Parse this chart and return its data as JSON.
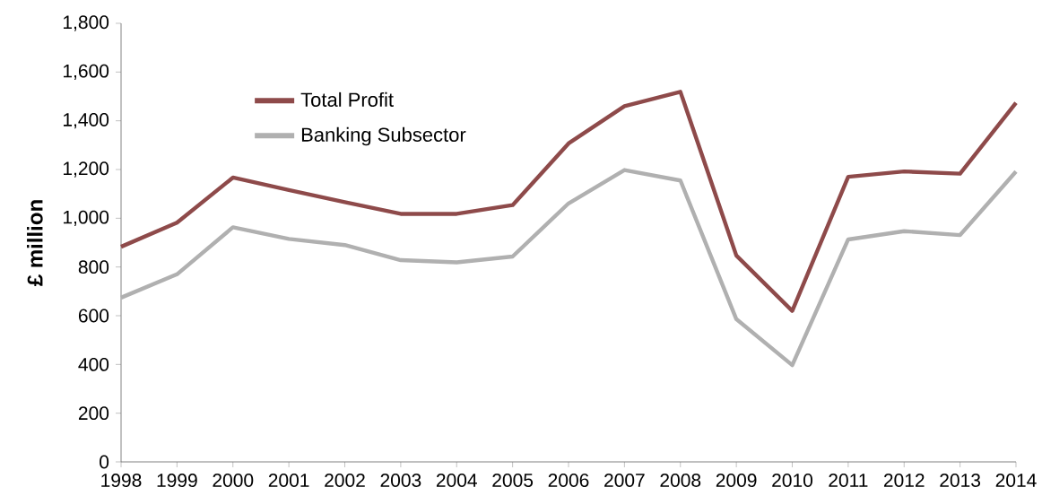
{
  "chart_data": {
    "type": "line",
    "ylabel": "£ million",
    "categories": [
      "1998",
      "1999",
      "2000",
      "2001",
      "2002",
      "2003",
      "2004",
      "2005",
      "2006",
      "2007",
      "2008",
      "2009",
      "2010",
      "2011",
      "2012",
      "2013",
      "2014"
    ],
    "series": [
      {
        "name": "Total Profit",
        "color": "#8e4a4a",
        "values": [
          883,
          982,
          1167,
          1116,
          1066,
          1018,
          1018,
          1054,
          1307,
          1460,
          1519,
          847,
          620,
          1170,
          1192,
          1183,
          1474
        ]
      },
      {
        "name": "Banking Subsector",
        "color": "#b0b0b0",
        "values": [
          674,
          770,
          963,
          915,
          890,
          828,
          819,
          843,
          1061,
          1198,
          1155,
          586,
          397,
          913,
          947,
          931,
          1192
        ]
      }
    ],
    "ylim": [
      0,
      1800
    ],
    "yticks": [
      {
        "value": 0,
        "label": "0"
      },
      {
        "value": 200,
        "label": "200"
      },
      {
        "value": 400,
        "label": "400"
      },
      {
        "value": 600,
        "label": "600"
      },
      {
        "value": 800,
        "label": "800"
      },
      {
        "value": 1000,
        "label": "1,000"
      },
      {
        "value": 1200,
        "label": "1,200"
      },
      {
        "value": 1400,
        "label": "1,400"
      },
      {
        "value": 1600,
        "label": "1,600"
      },
      {
        "value": 1800,
        "label": "1,800"
      }
    ],
    "grid": false,
    "legend": "top left",
    "marker": "none",
    "line_style": "solid"
  }
}
